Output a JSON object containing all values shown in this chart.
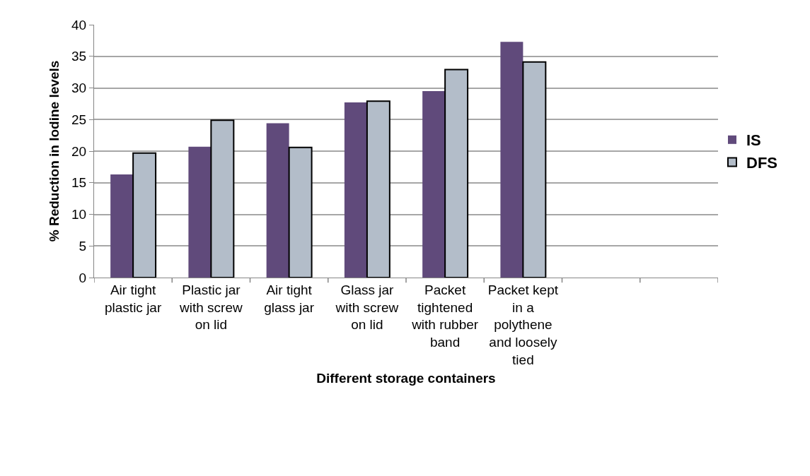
{
  "chart_data": {
    "type": "bar",
    "xlabel": "Different storage containers",
    "ylabel": "% Reduction in Iodine levels",
    "categories": [
      "Air tight plastic jar",
      "Plastic jar with screw on lid",
      "Air tight glass jar",
      "Glass jar with screw on lid",
      "Packet tightened with rubber band",
      "Packet kept in a polythene and loosely tied",
      null,
      null
    ],
    "series": [
      {
        "name": "IS",
        "color": "#604a7b",
        "values": [
          16.3,
          20.7,
          24.4,
          27.7,
          29.5,
          37.3,
          null,
          null
        ]
      },
      {
        "name": "DFS",
        "color": "#b3bdc9",
        "values": [
          19.7,
          24.9,
          20.6,
          27.9,
          32.9,
          34.1,
          null,
          null
        ]
      }
    ],
    "ylim": [
      0,
      40
    ],
    "yticks": [
      0,
      5,
      10,
      15,
      20,
      25,
      30,
      35,
      40
    ],
    "grid": "y",
    "legend": "right"
  }
}
